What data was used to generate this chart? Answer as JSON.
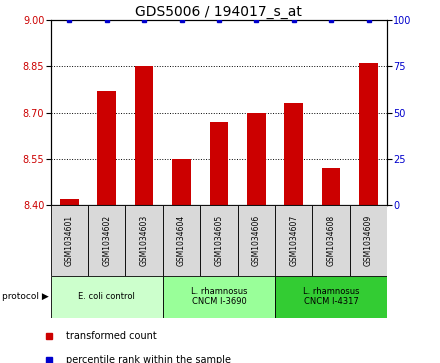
{
  "title": "GDS5006 / 194017_s_at",
  "samples": [
    "GSM1034601",
    "GSM1034602",
    "GSM1034603",
    "GSM1034604",
    "GSM1034605",
    "GSM1034606",
    "GSM1034607",
    "GSM1034608",
    "GSM1034609"
  ],
  "transformed_count": [
    8.42,
    8.77,
    8.85,
    8.55,
    8.67,
    8.7,
    8.73,
    8.52,
    8.86
  ],
  "percentile_rank": [
    100,
    100,
    100,
    100,
    100,
    100,
    100,
    100,
    100
  ],
  "ylim_left": [
    8.4,
    9.0
  ],
  "ylim_right": [
    0,
    100
  ],
  "yticks_left": [
    8.4,
    8.55,
    8.7,
    8.85,
    9.0
  ],
  "yticks_right": [
    0,
    25,
    50,
    75,
    100
  ],
  "bar_color": "#cc0000",
  "dot_color": "#0000cc",
  "group_colors": [
    "#ccffcc",
    "#99ff99",
    "#33cc33"
  ],
  "group_labels": [
    "E. coli control",
    "L. rhamnosus\nCNCM I-3690",
    "L. rhamnosus\nCNCM I-4317"
  ],
  "group_ranges": [
    [
      0,
      3
    ],
    [
      3,
      6
    ],
    [
      6,
      9
    ]
  ],
  "legend_bar_label": "transformed count",
  "legend_dot_label": "percentile rank within the sample",
  "bg_color": "#ffffff",
  "title_fontsize": 10,
  "bar_width": 0.5
}
